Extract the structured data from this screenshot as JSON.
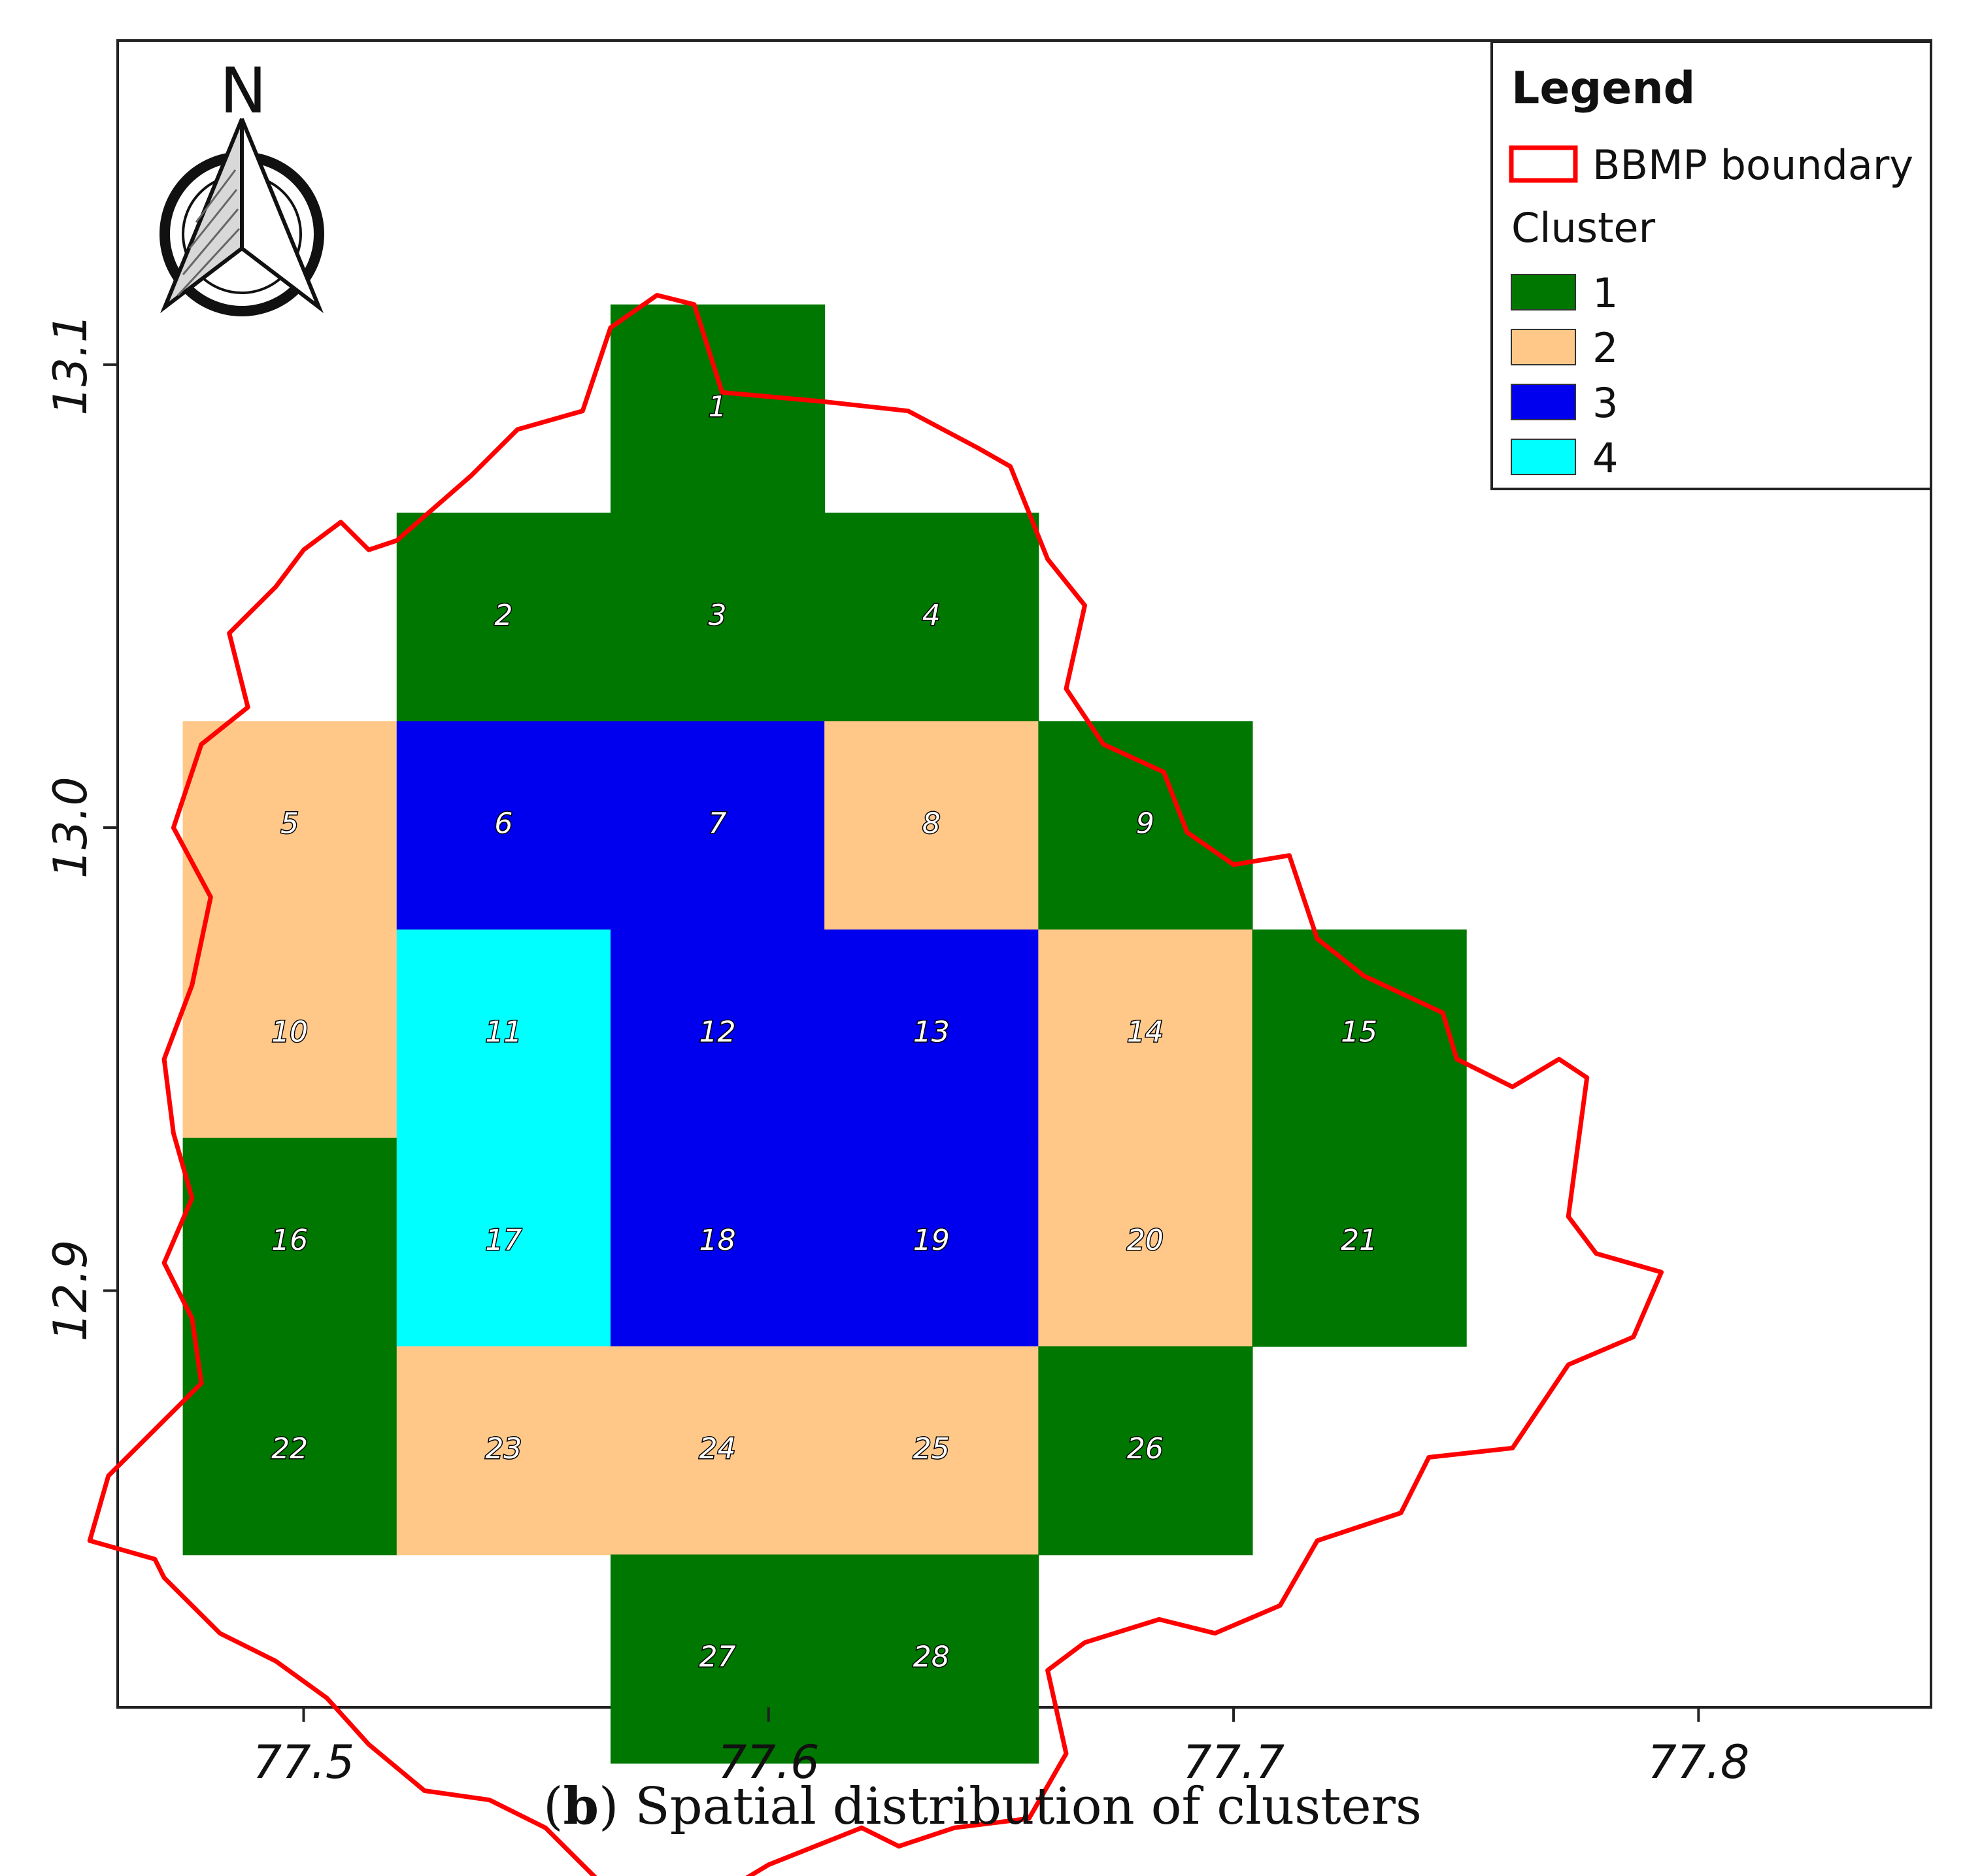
{
  "caption": {
    "letter": "b",
    "text": ") Spatial distribution of clusters",
    "open": "("
  },
  "north_arrow": {
    "letter": "N"
  },
  "legend": {
    "title": "Legend",
    "boundary_label": "BBMP boundary",
    "boundary_color": "#ff0000",
    "cluster_heading": "Cluster",
    "clusters": [
      {
        "id": "1",
        "label": "1",
        "color": "#007700"
      },
      {
        "id": "2",
        "label": "2",
        "color": "#ffc888"
      },
      {
        "id": "3",
        "label": "3",
        "color": "#0000ee"
      },
      {
        "id": "4",
        "label": "4",
        "color": "#00ffff"
      }
    ]
  },
  "axes": {
    "x": {
      "min": 77.46,
      "max": 77.85,
      "ticks": [
        "77.5",
        "77.6",
        "77.7",
        "77.8"
      ],
      "tick_values": [
        77.5,
        77.6,
        77.7,
        77.8
      ]
    },
    "y": {
      "min": 12.81,
      "max": 13.17,
      "ticks": [
        "13.1",
        "13.0",
        "12.9"
      ],
      "tick_values": [
        13.1,
        13.0,
        12.9
      ]
    }
  },
  "grid_cells": [
    {
      "id": "1",
      "cluster": "1",
      "lon": [
        77.566,
        77.612
      ],
      "lat": [
        13.068,
        13.113
      ]
    },
    {
      "id": "2",
      "cluster": "1",
      "lon": [
        77.52,
        77.566
      ],
      "lat": [
        13.023,
        13.068
      ]
    },
    {
      "id": "3",
      "cluster": "1",
      "lon": [
        77.566,
        77.612
      ],
      "lat": [
        13.023,
        13.068
      ]
    },
    {
      "id": "4",
      "cluster": "1",
      "lon": [
        77.612,
        77.658
      ],
      "lat": [
        13.023,
        13.068
      ]
    },
    {
      "id": "5",
      "cluster": "2",
      "lon": [
        77.474,
        77.52
      ],
      "lat": [
        12.978,
        13.023
      ]
    },
    {
      "id": "6",
      "cluster": "3",
      "lon": [
        77.52,
        77.566
      ],
      "lat": [
        12.978,
        13.023
      ]
    },
    {
      "id": "7",
      "cluster": "3",
      "lon": [
        77.566,
        77.612
      ],
      "lat": [
        12.978,
        13.023
      ]
    },
    {
      "id": "8",
      "cluster": "2",
      "lon": [
        77.612,
        77.658
      ],
      "lat": [
        12.978,
        13.023
      ]
    },
    {
      "id": "9",
      "cluster": "1",
      "lon": [
        77.658,
        77.704
      ],
      "lat": [
        12.978,
        13.023
      ]
    },
    {
      "id": "10",
      "cluster": "2",
      "lon": [
        77.474,
        77.52
      ],
      "lat": [
        12.933,
        12.978
      ]
    },
    {
      "id": "11",
      "cluster": "4",
      "lon": [
        77.52,
        77.566
      ],
      "lat": [
        12.933,
        12.978
      ]
    },
    {
      "id": "12",
      "cluster": "3",
      "lon": [
        77.566,
        77.612
      ],
      "lat": [
        12.933,
        12.978
      ]
    },
    {
      "id": "13",
      "cluster": "3",
      "lon": [
        77.612,
        77.658
      ],
      "lat": [
        12.933,
        12.978
      ]
    },
    {
      "id": "14",
      "cluster": "2",
      "lon": [
        77.658,
        77.704
      ],
      "lat": [
        12.933,
        12.978
      ]
    },
    {
      "id": "15",
      "cluster": "1",
      "lon": [
        77.704,
        77.75
      ],
      "lat": [
        12.933,
        12.978
      ]
    },
    {
      "id": "16",
      "cluster": "1",
      "lon": [
        77.474,
        77.52
      ],
      "lat": [
        12.888,
        12.933
      ]
    },
    {
      "id": "17",
      "cluster": "4",
      "lon": [
        77.52,
        77.566
      ],
      "lat": [
        12.888,
        12.933
      ]
    },
    {
      "id": "18",
      "cluster": "3",
      "lon": [
        77.566,
        77.612
      ],
      "lat": [
        12.888,
        12.933
      ]
    },
    {
      "id": "19",
      "cluster": "3",
      "lon": [
        77.612,
        77.658
      ],
      "lat": [
        12.888,
        12.933
      ]
    },
    {
      "id": "20",
      "cluster": "2",
      "lon": [
        77.658,
        77.704
      ],
      "lat": [
        12.888,
        12.933
      ]
    },
    {
      "id": "21",
      "cluster": "1",
      "lon": [
        77.704,
        77.75
      ],
      "lat": [
        12.888,
        12.933
      ]
    },
    {
      "id": "22",
      "cluster": "1",
      "lon": [
        77.474,
        77.52
      ],
      "lat": [
        12.843,
        12.888
      ]
    },
    {
      "id": "23",
      "cluster": "2",
      "lon": [
        77.52,
        77.566
      ],
      "lat": [
        12.843,
        12.888
      ]
    },
    {
      "id": "24",
      "cluster": "2",
      "lon": [
        77.566,
        77.612
      ],
      "lat": [
        12.843,
        12.888
      ]
    },
    {
      "id": "25",
      "cluster": "2",
      "lon": [
        77.612,
        77.658
      ],
      "lat": [
        12.843,
        12.888
      ]
    },
    {
      "id": "26",
      "cluster": "1",
      "lon": [
        77.658,
        77.704
      ],
      "lat": [
        12.843,
        12.888
      ]
    },
    {
      "id": "27",
      "cluster": "1",
      "lon": [
        77.566,
        77.612
      ],
      "lat": [
        12.798,
        12.843
      ]
    },
    {
      "id": "28",
      "cluster": "1",
      "lon": [
        77.612,
        77.658
      ],
      "lat": [
        12.798,
        12.843
      ]
    }
  ],
  "boundary_lonlat": [
    [
      77.576,
      13.115
    ],
    [
      77.584,
      13.113
    ],
    [
      77.59,
      13.094
    ],
    [
      77.612,
      13.092
    ],
    [
      77.63,
      13.09
    ],
    [
      77.645,
      13.082
    ],
    [
      77.652,
      13.078
    ],
    [
      77.66,
      13.058
    ],
    [
      77.668,
      13.048
    ],
    [
      77.664,
      13.03
    ],
    [
      77.672,
      13.018
    ],
    [
      77.685,
      13.012
    ],
    [
      77.69,
      12.999
    ],
    [
      77.7,
      12.992
    ],
    [
      77.712,
      12.994
    ],
    [
      77.718,
      12.976
    ],
    [
      77.728,
      12.968
    ],
    [
      77.745,
      12.96
    ],
    [
      77.748,
      12.95
    ],
    [
      77.76,
      12.944
    ],
    [
      77.77,
      12.95
    ],
    [
      77.776,
      12.946
    ],
    [
      77.772,
      12.916
    ],
    [
      77.778,
      12.908
    ],
    [
      77.792,
      12.904
    ],
    [
      77.786,
      12.89
    ],
    [
      77.772,
      12.884
    ],
    [
      77.76,
      12.866
    ],
    [
      77.742,
      12.864
    ],
    [
      77.736,
      12.852
    ],
    [
      77.718,
      12.846
    ],
    [
      77.71,
      12.832
    ],
    [
      77.696,
      12.826
    ],
    [
      77.684,
      12.829
    ],
    [
      77.668,
      12.824
    ],
    [
      77.66,
      12.818
    ],
    [
      77.664,
      12.8
    ],
    [
      77.656,
      12.786
    ],
    [
      77.64,
      12.784
    ],
    [
      77.628,
      12.78
    ],
    [
      77.62,
      12.784
    ],
    [
      77.6,
      12.776
    ],
    [
      77.59,
      12.77
    ],
    [
      77.577,
      12.768
    ],
    [
      77.566,
      12.77
    ],
    [
      77.552,
      12.784
    ],
    [
      77.54,
      12.79
    ],
    [
      77.526,
      12.792
    ],
    [
      77.514,
      12.802
    ],
    [
      77.505,
      12.812
    ],
    [
      77.494,
      12.82
    ],
    [
      77.482,
      12.826
    ],
    [
      77.47,
      12.838
    ],
    [
      77.468,
      12.842
    ],
    [
      77.454,
      12.846
    ],
    [
      77.458,
      12.86
    ],
    [
      77.468,
      12.87
    ],
    [
      77.478,
      12.88
    ],
    [
      77.476,
      12.894
    ],
    [
      77.47,
      12.906
    ],
    [
      77.476,
      12.92
    ],
    [
      77.472,
      12.934
    ],
    [
      77.47,
      12.95
    ],
    [
      77.476,
      12.966
    ],
    [
      77.48,
      12.985
    ],
    [
      77.472,
      13.0
    ],
    [
      77.478,
      13.018
    ],
    [
      77.488,
      13.026
    ],
    [
      77.484,
      13.042
    ],
    [
      77.494,
      13.052
    ],
    [
      77.5,
      13.06
    ],
    [
      77.508,
      13.066
    ],
    [
      77.514,
      13.06
    ],
    [
      77.52,
      13.062
    ],
    [
      77.536,
      13.076
    ],
    [
      77.546,
      13.086
    ],
    [
      77.56,
      13.09
    ],
    [
      77.566,
      13.108
    ],
    [
      77.576,
      13.115
    ]
  ]
}
